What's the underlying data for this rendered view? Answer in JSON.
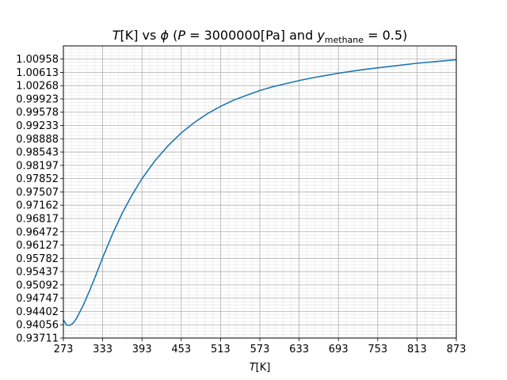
{
  "chart_data": {
    "type": "line",
    "title_parts": {
      "t": "T",
      "t_unit": "[K] vs ",
      "phi": "ϕ",
      "paren_open": " (",
      "p": "P",
      "p_value": " = 3000000[Pa] and ",
      "y": "y",
      "y_sub": "methane",
      "y_value": " = 0.5)"
    },
    "xlabel_parts": {
      "t": "T",
      "unit": "[K]"
    },
    "ylabel": "",
    "xlim": [
      273,
      873
    ],
    "ylim": [
      0.93711,
      1.013
    ],
    "x_ticks": [
      273,
      333,
      393,
      453,
      513,
      573,
      633,
      693,
      753,
      813,
      873
    ],
    "y_ticks": [
      0.93711,
      0.94056,
      0.94402,
      0.94747,
      0.95092,
      0.95437,
      0.95782,
      0.96127,
      0.96472,
      0.96817,
      0.97162,
      0.97507,
      0.97852,
      0.98197,
      0.98543,
      0.98888,
      0.99233,
      0.99578,
      0.99923,
      1.00268,
      1.00613,
      1.00958
    ],
    "grid": true,
    "minor_grid": true,
    "series": [
      {
        "color": "#1f77b4",
        "x": [
          273,
          278,
          283,
          288,
          293,
          303,
          313,
          323,
          333,
          348,
          363,
          378,
          393,
          413,
          433,
          453,
          473,
          493,
          513,
          533,
          553,
          573,
          593,
          613,
          633,
          653,
          673,
          693,
          713,
          733,
          753,
          773,
          793,
          813,
          833,
          853,
          873
        ],
        "y": [
          0.9418,
          0.9405,
          0.9404,
          0.941,
          0.9422,
          0.9455,
          0.9494,
          0.9536,
          0.958,
          0.9641,
          0.9696,
          0.9743,
          0.9785,
          0.9832,
          0.9871,
          0.9904,
          0.9931,
          0.9954,
          0.9973,
          0.9989,
          1.0002,
          1.0014,
          1.0024,
          1.0032,
          1.004,
          1.0047,
          1.0053,
          1.0059,
          1.0064,
          1.0069,
          1.0073,
          1.0077,
          1.0081,
          1.0085,
          1.0088,
          1.0091,
          1.0094
        ]
      }
    ]
  }
}
